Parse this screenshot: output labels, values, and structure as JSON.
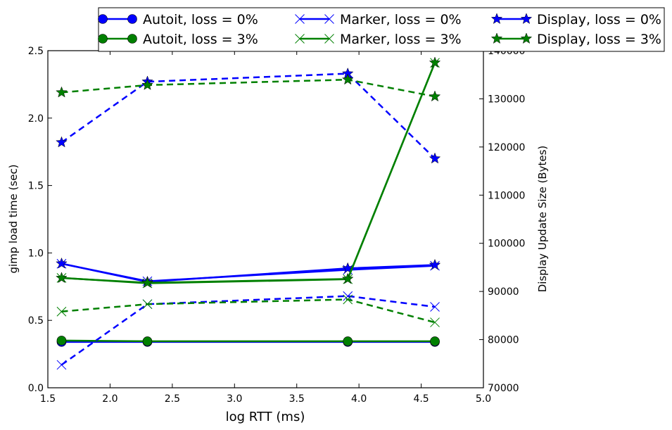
{
  "chart_data": {
    "type": "line",
    "xlabel": "log RTT (ms)",
    "ylabel_left": "gimp load time (sec)",
    "ylabel_right": "Display Update Size (Bytes)",
    "xlim": [
      1.5,
      5.0
    ],
    "ylim_left": [
      0.0,
      2.5
    ],
    "ylim_right": [
      70000,
      140000
    ],
    "x_ticks": [
      "1.5",
      "2.0",
      "2.5",
      "3.0",
      "3.5",
      "4.0",
      "4.5",
      "5.0"
    ],
    "y_left_ticks": [
      "0.0",
      "0.5",
      "1.0",
      "1.5",
      "2.0",
      "2.5"
    ],
    "y_right_ticks": [
      "70000",
      "80000",
      "90000",
      "100000",
      "110000",
      "120000",
      "130000",
      "140000"
    ],
    "legend_position": "top",
    "legend": [
      {
        "label": "Autoit, loss = 0%",
        "color": "#0000ff",
        "marker": "circle"
      },
      {
        "label": "Autoit, loss = 3%",
        "color": "#008000",
        "marker": "circle"
      },
      {
        "label": "Marker, loss = 0%",
        "color": "#0000ff",
        "marker": "x"
      },
      {
        "label": "Marker, loss = 3%",
        "color": "#008000",
        "marker": "x"
      },
      {
        "label": "Display, loss = 0%",
        "color": "#0000ff",
        "marker": "star"
      },
      {
        "label": "Display, loss = 3%",
        "color": "#008000",
        "marker": "star"
      }
    ],
    "x": [
      1.61,
      2.3,
      3.91,
      4.61
    ],
    "series": [
      {
        "name": "Autoit, loss = 0%",
        "axis": "left",
        "style": "solid",
        "marker": "circle",
        "color": "#0000ff",
        "values": [
          0.34,
          0.34,
          0.34,
          0.34
        ]
      },
      {
        "name": "Autoit, loss = 3%",
        "axis": "left",
        "style": "solid",
        "marker": "circle",
        "color": "#008000",
        "values": [
          0.35,
          0.345,
          0.345,
          0.345
        ]
      },
      {
        "name": "Marker, loss = 0%",
        "axis": "left",
        "style": "solid",
        "marker": "x",
        "color": "#0000ff",
        "values": [
          0.92,
          0.79,
          0.875,
          0.905
        ]
      },
      {
        "name": "Marker, loss = 3%",
        "axis": "left",
        "style": "solid",
        "marker": "x",
        "color": "#008000",
        "values": [
          0.815,
          0.775,
          0.805,
          2.41
        ]
      },
      {
        "name": "Display, loss = 0%",
        "axis": "right",
        "style": "solid",
        "marker": "star",
        "color": "#0000ff",
        "values": [
          95800,
          92000,
          94800,
          95500
        ]
      },
      {
        "name": "Display, loss = 3%",
        "axis": "right",
        "style": "solid",
        "marker": "star",
        "color": "#008000",
        "values": [
          92800,
          91800,
          92600,
          137500
        ]
      },
      {
        "name": "",
        "axis": "left",
        "style": "dashed",
        "marker": "star",
        "color": "#0000ff",
        "values": [
          1.82,
          2.27,
          2.33,
          1.7
        ]
      },
      {
        "name": "",
        "axis": "left",
        "style": "dashed",
        "marker": "star",
        "color": "#008000",
        "values": [
          2.19,
          2.245,
          2.285,
          2.16
        ]
      },
      {
        "name": "",
        "axis": "left",
        "style": "dashed",
        "marker": "x",
        "color": "#0000ff",
        "values": [
          0.17,
          0.62,
          0.68,
          0.6
        ]
      },
      {
        "name": "",
        "axis": "left",
        "style": "dashed",
        "marker": "x",
        "color": "#008000",
        "values": [
          0.565,
          0.62,
          0.655,
          0.485
        ]
      }
    ]
  }
}
